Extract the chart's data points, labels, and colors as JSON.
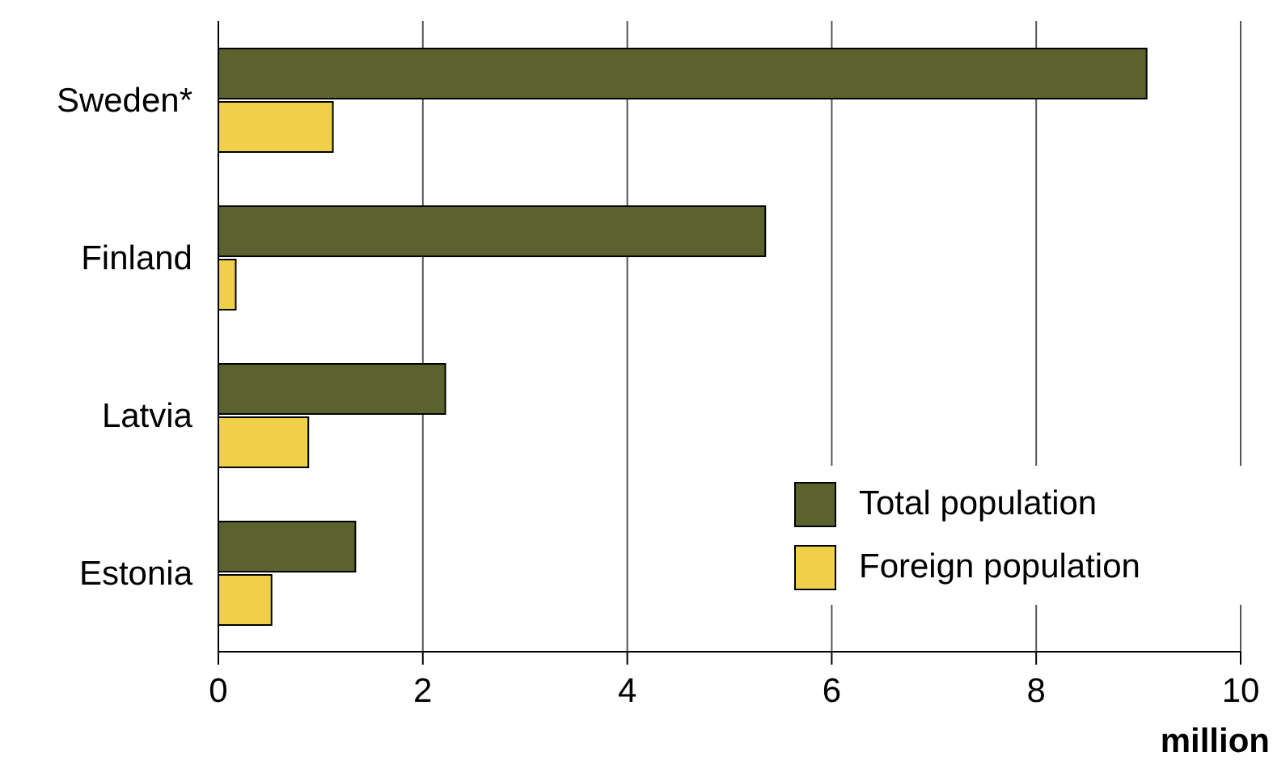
{
  "chart_data": {
    "type": "bar",
    "orientation": "horizontal",
    "xlabel": "million",
    "categories": [
      "Sweden*",
      "Finland",
      "Latvia",
      "Estonia"
    ],
    "series": [
      {
        "name": "Total population",
        "color": "#5c622d",
        "values": [
          9.08,
          5.35,
          2.22,
          1.34
        ]
      },
      {
        "name": "Foreign population",
        "color": "#f0d048",
        "values": [
          1.12,
          0.17,
          0.88,
          0.52
        ]
      }
    ],
    "xlim": [
      0,
      10
    ],
    "xticks": [
      0,
      2,
      4,
      6,
      8,
      10
    ],
    "grid": "x",
    "legend": "bottom right"
  }
}
